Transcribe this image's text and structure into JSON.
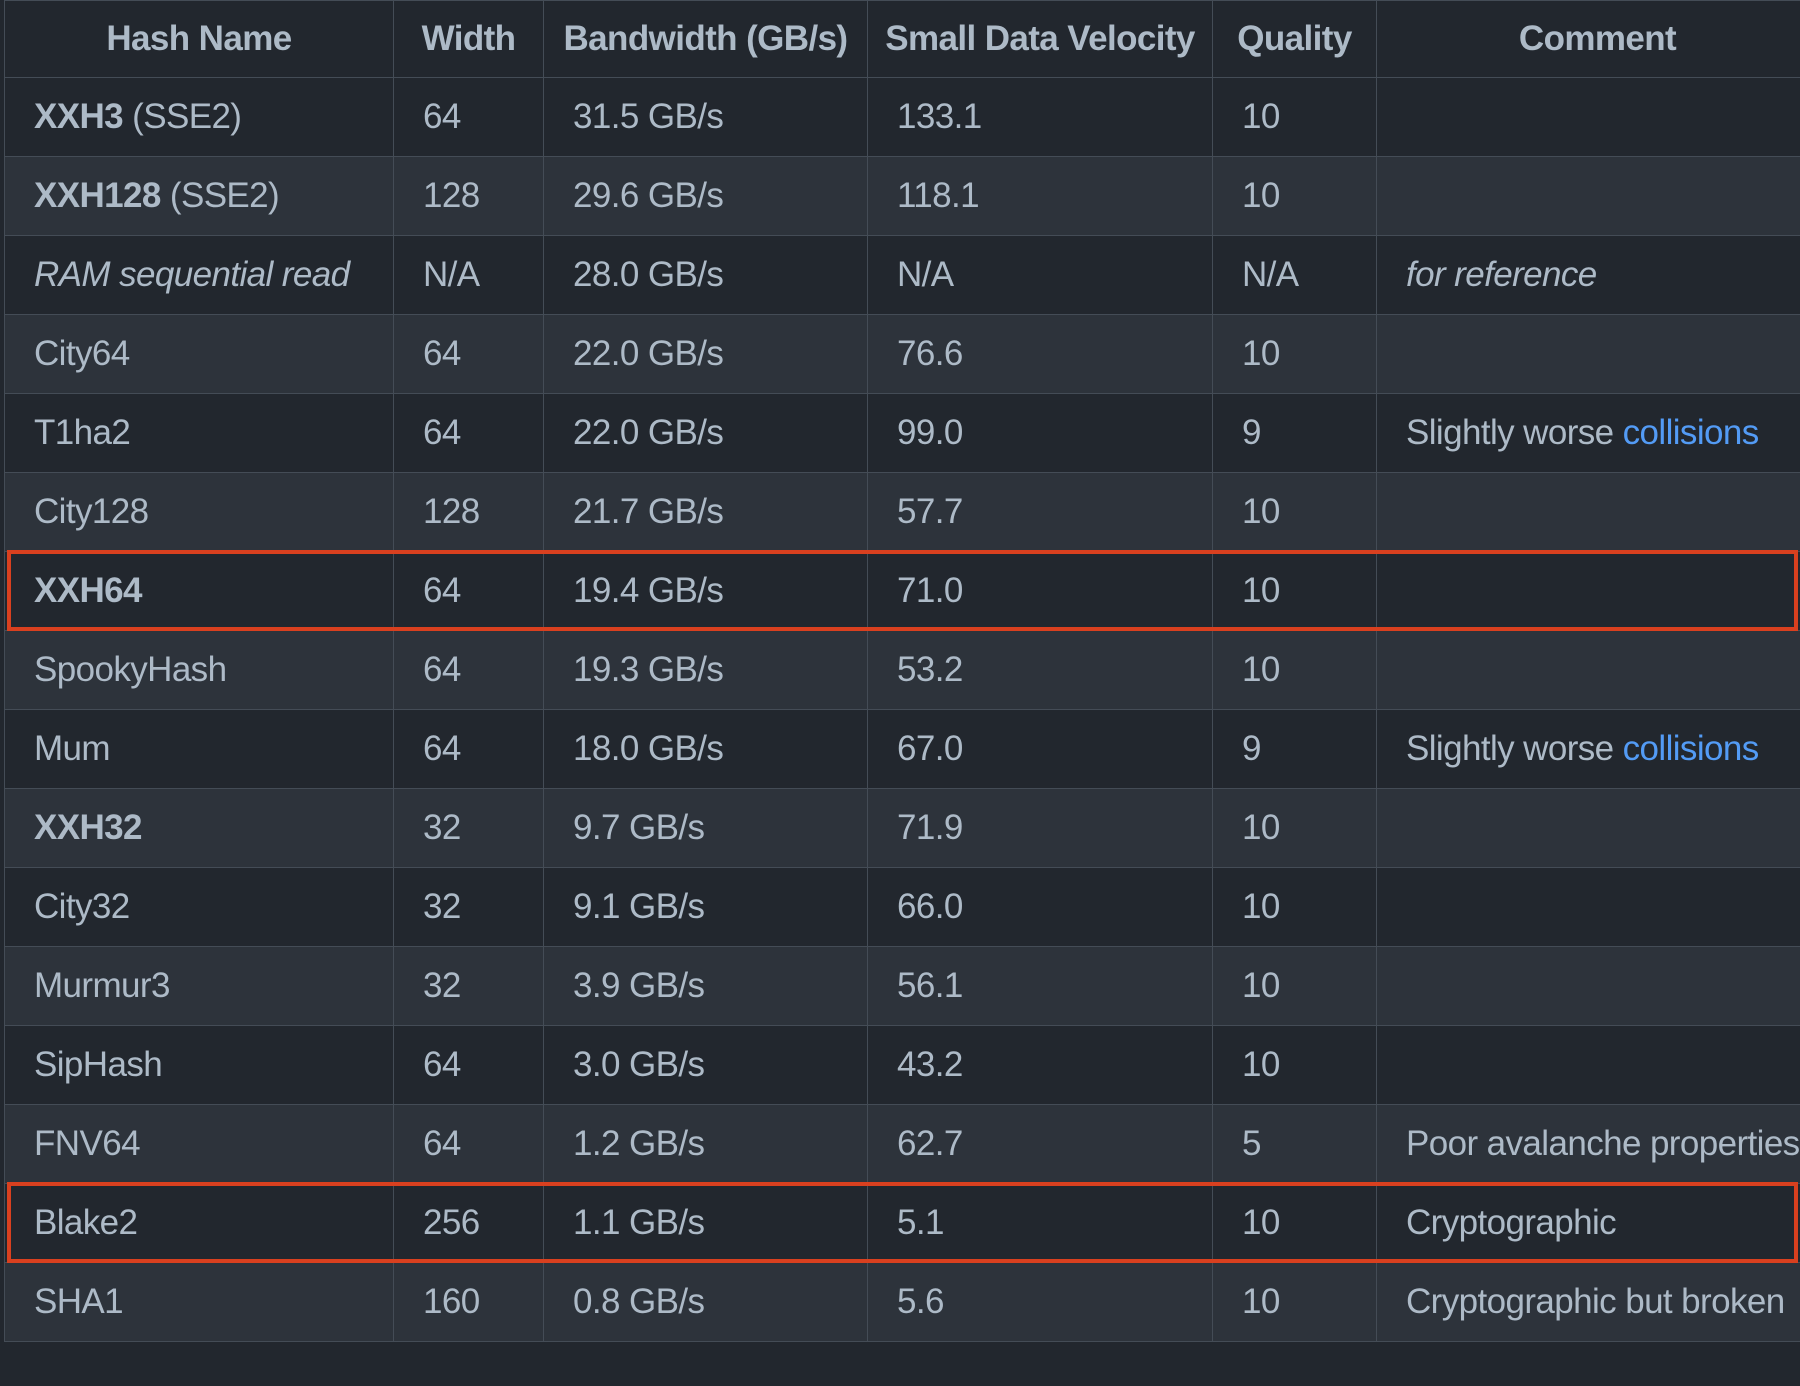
{
  "table": {
    "headers": [
      "Hash Name",
      "Width",
      "Bandwidth (GB/s)",
      "Small Data Velocity",
      "Quality",
      "Comment"
    ],
    "rows": [
      {
        "name": "XXH3",
        "name_suffix": " (SSE2)",
        "name_style": "bold-prefix",
        "width": "64",
        "bandwidth": "31.5 GB/s",
        "velocity": "133.1",
        "quality": "10",
        "comment": "",
        "comment_link": ""
      },
      {
        "name": "XXH128",
        "name_suffix": " (SSE2)",
        "name_style": "bold-prefix",
        "width": "128",
        "bandwidth": "29.6 GB/s",
        "velocity": "118.1",
        "quality": "10",
        "comment": "",
        "comment_link": ""
      },
      {
        "name": "RAM sequential read",
        "name_suffix": "",
        "name_style": "italic",
        "width": "N/A",
        "bandwidth": "28.0 GB/s",
        "velocity": "N/A",
        "quality": "N/A",
        "comment": "for reference",
        "comment_style": "italic",
        "comment_link": ""
      },
      {
        "name": "City64",
        "name_suffix": "",
        "name_style": "normal",
        "width": "64",
        "bandwidth": "22.0 GB/s",
        "velocity": "76.6",
        "quality": "10",
        "comment": "",
        "comment_link": ""
      },
      {
        "name": "T1ha2",
        "name_suffix": "",
        "name_style": "normal",
        "width": "64",
        "bandwidth": "22.0 GB/s",
        "velocity": "99.0",
        "quality": "9",
        "comment": "Slightly worse ",
        "comment_link": "collisions"
      },
      {
        "name": "City128",
        "name_suffix": "",
        "name_style": "normal",
        "width": "128",
        "bandwidth": "21.7 GB/s",
        "velocity": "57.7",
        "quality": "10",
        "comment": "",
        "comment_link": ""
      },
      {
        "name": "XXH64",
        "name_suffix": "",
        "name_style": "bold",
        "width": "64",
        "bandwidth": "19.4 GB/s",
        "velocity": "71.0",
        "quality": "10",
        "comment": "",
        "comment_link": "",
        "highlighted": true
      },
      {
        "name": "SpookyHash",
        "name_suffix": "",
        "name_style": "normal",
        "width": "64",
        "bandwidth": "19.3 GB/s",
        "velocity": "53.2",
        "quality": "10",
        "comment": "",
        "comment_link": ""
      },
      {
        "name": "Mum",
        "name_suffix": "",
        "name_style": "normal",
        "width": "64",
        "bandwidth": "18.0 GB/s",
        "velocity": "67.0",
        "quality": "9",
        "comment": "Slightly worse ",
        "comment_link": "collisions"
      },
      {
        "name": "XXH32",
        "name_suffix": "",
        "name_style": "bold",
        "width": "32",
        "bandwidth": "9.7 GB/s",
        "velocity": "71.9",
        "quality": "10",
        "comment": "",
        "comment_link": ""
      },
      {
        "name": "City32",
        "name_suffix": "",
        "name_style": "normal",
        "width": "32",
        "bandwidth": "9.1 GB/s",
        "velocity": "66.0",
        "quality": "10",
        "comment": "",
        "comment_link": ""
      },
      {
        "name": "Murmur3",
        "name_suffix": "",
        "name_style": "normal",
        "width": "32",
        "bandwidth": "3.9 GB/s",
        "velocity": "56.1",
        "quality": "10",
        "comment": "",
        "comment_link": ""
      },
      {
        "name": "SipHash",
        "name_suffix": "",
        "name_style": "normal",
        "width": "64",
        "bandwidth": "3.0 GB/s",
        "velocity": "43.2",
        "quality": "10",
        "comment": "",
        "comment_link": ""
      },
      {
        "name": "FNV64",
        "name_suffix": "",
        "name_style": "normal",
        "width": "64",
        "bandwidth": "1.2 GB/s",
        "velocity": "62.7",
        "quality": "5",
        "comment": "Poor avalanche properties",
        "comment_link": ""
      },
      {
        "name": "Blake2",
        "name_suffix": "",
        "name_style": "normal",
        "width": "256",
        "bandwidth": "1.1 GB/s",
        "velocity": "5.1",
        "quality": "10",
        "comment": "Cryptographic",
        "comment_link": "",
        "highlighted": true
      },
      {
        "name": "SHA1",
        "name_suffix": "",
        "name_style": "normal",
        "width": "160",
        "bandwidth": "0.8 GB/s",
        "velocity": "5.6",
        "quality": "10",
        "comment": "Cryptographic but broken",
        "comment_link": ""
      }
    ]
  },
  "colors": {
    "background": "#22272e",
    "row_alt": "#2d333b",
    "border": "#444c56",
    "text": "#adbac7",
    "link": "#539bf5",
    "highlight_box": "#d9401f"
  }
}
